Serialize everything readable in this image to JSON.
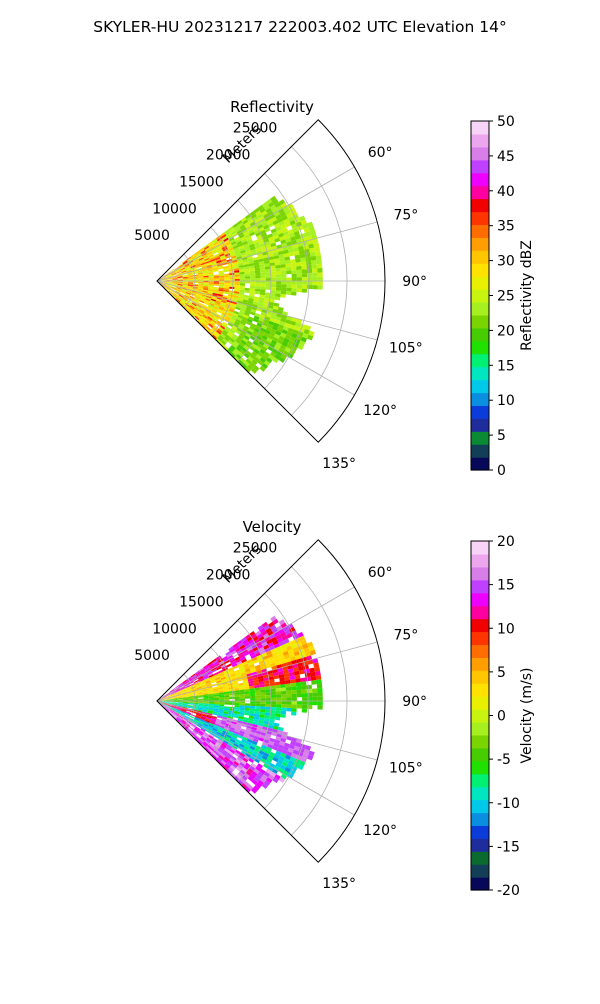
{
  "figure": {
    "suptitle": "SKYLER-HU  20231217  222003.402 UTC Elevation 14°"
  },
  "chart_data": [
    {
      "type": "heatmap",
      "projection": "polar-sector",
      "title": "Reflectivity",
      "range_label": "Meters",
      "range_ticks": [
        5000,
        10000,
        15000,
        20000,
        25000
      ],
      "range_max": 30000,
      "azimuth_range": [
        45,
        135
      ],
      "azimuth_ticks": [
        60,
        75,
        90,
        105,
        120,
        135
      ],
      "grid": true,
      "colorbar": {
        "label": "Reflectivity dBZ",
        "min": 0,
        "max": 50,
        "ticks": [
          0,
          5,
          10,
          15,
          20,
          25,
          30,
          35,
          40,
          45,
          50
        ],
        "colors": [
          "#08085a",
          "#123e57",
          "#0a8a35",
          "#1e2d9b",
          "#0b3bd8",
          "#0a8fe0",
          "#00c8e8",
          "#00e6c0",
          "#00f074",
          "#20e000",
          "#46cc00",
          "#7ad400",
          "#a6f020",
          "#c8f410",
          "#e8f000",
          "#ffe200",
          "#ffc600",
          "#ff9e00",
          "#ff6d00",
          "#ff3500",
          "#f00000",
          "#ff00a0",
          "#ee00ff",
          "#c040ff",
          "#d87ee8",
          "#eba6ee",
          "#f7d4f7"
        ]
      },
      "field_description": "values fall mostly between 18 and 26 dBZ across the sector, with local 30 to 37 dBZ pockets within about 10000 m of the radar"
    },
    {
      "type": "heatmap",
      "projection": "polar-sector",
      "title": "Velocity",
      "range_label": "Meters",
      "range_ticks": [
        5000,
        10000,
        15000,
        20000,
        25000
      ],
      "range_max": 30000,
      "azimuth_range": [
        45,
        135
      ],
      "azimuth_ticks": [
        60,
        75,
        90,
        105,
        120,
        135
      ],
      "grid": true,
      "colorbar": {
        "label": "Velocity (m/s)",
        "min": -20,
        "max": 20,
        "ticks": [
          -20,
          -15,
          -10,
          -5,
          0,
          5,
          10,
          15,
          20
        ],
        "colors": [
          "#08085a",
          "#123e57",
          "#0a6a30",
          "#1e2d9b",
          "#0b3bd8",
          "#0a8fe0",
          "#00c8e8",
          "#00e6c0",
          "#00f074",
          "#20e000",
          "#46cc00",
          "#7ad400",
          "#a6f020",
          "#c8f410",
          "#e8f000",
          "#ffe200",
          "#ffc600",
          "#ff9e00",
          "#ff6d00",
          "#ff3500",
          "#f00000",
          "#ff00a0",
          "#ee00ff",
          "#c040ff",
          "#d87ee8",
          "#eba6ee",
          "#f7d4f7"
        ]
      },
      "field_description": "banded pattern: positive 8 to 17 m/s along the north edge and in the south sector, negative -12 to -5 m/s across the middle sector, near 0 to 5 m/s bands between"
    }
  ]
}
